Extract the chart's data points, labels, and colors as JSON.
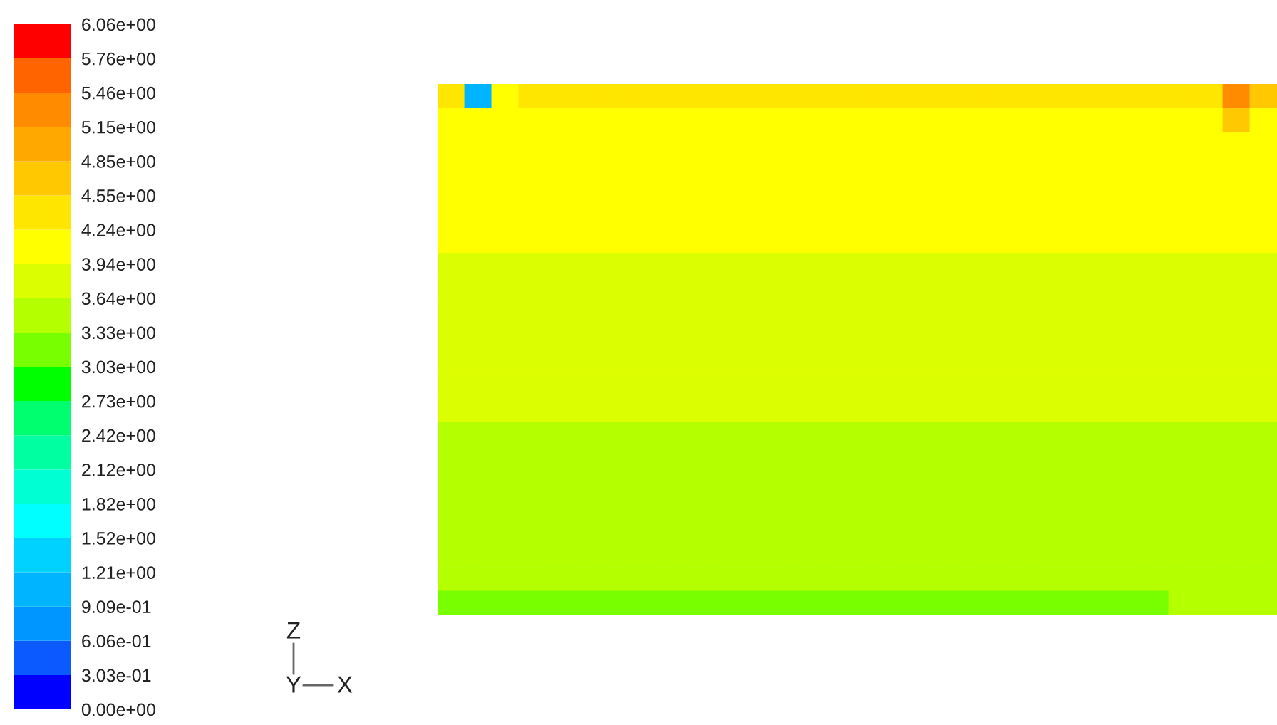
{
  "chart_data": {
    "type": "heatmap",
    "categories": [
      null,
      null,
      null,
      null,
      null,
      null,
      null,
      null,
      null,
      null,
      null,
      null,
      null,
      null,
      null,
      null,
      null,
      null,
      null,
      null,
      null,
      null,
      null,
      null,
      null,
      null,
      null,
      null,
      null,
      null,
      null
    ],
    "y_categories": [
      null,
      null,
      null,
      null,
      null,
      null,
      null,
      null,
      null,
      null,
      null,
      null,
      null,
      null,
      null,
      null,
      null,
      null,
      null,
      null,
      null,
      null
    ],
    "cells": [
      [
        4.4,
        1.06,
        4.09,
        4.4,
        4.4,
        4.4,
        4.4,
        4.4,
        4.4,
        4.4,
        4.4,
        4.4,
        4.4,
        4.4,
        4.4,
        4.4,
        4.4,
        4.4,
        4.4,
        4.4,
        4.4,
        4.4,
        4.4,
        4.4,
        4.4,
        4.4,
        4.4,
        4.4,
        4.4,
        5.3,
        4.7
      ],
      [
        4.09,
        4.09,
        4.09,
        4.09,
        4.09,
        4.09,
        4.09,
        4.09,
        4.09,
        4.09,
        4.09,
        4.09,
        4.09,
        4.09,
        4.09,
        4.09,
        4.09,
        4.09,
        4.09,
        4.09,
        4.09,
        4.09,
        4.09,
        4.09,
        4.09,
        4.09,
        4.09,
        4.09,
        4.09,
        4.7,
        4.09
      ],
      [
        4.09,
        4.09,
        4.09,
        4.09,
        4.09,
        4.09,
        4.09,
        4.09,
        4.09,
        4.09,
        4.09,
        4.09,
        4.09,
        4.09,
        4.09,
        4.09,
        4.09,
        4.09,
        4.09,
        4.09,
        4.09,
        4.09,
        4.09,
        4.09,
        4.09,
        4.09,
        4.09,
        4.09,
        4.09,
        4.09,
        4.09
      ],
      [
        4.09,
        4.09,
        4.09,
        4.09,
        4.09,
        4.09,
        4.09,
        4.09,
        4.09,
        4.09,
        4.09,
        4.09,
        4.09,
        4.09,
        4.09,
        4.09,
        4.09,
        4.09,
        4.09,
        4.09,
        4.09,
        4.09,
        4.09,
        4.09,
        4.09,
        4.09,
        4.09,
        4.09,
        4.09,
        4.09,
        4.09
      ],
      [
        4.09,
        4.09,
        4.09,
        4.09,
        4.09,
        4.09,
        4.09,
        4.09,
        4.09,
        4.09,
        4.09,
        4.09,
        4.09,
        4.09,
        4.09,
        4.09,
        4.09,
        4.09,
        4.09,
        4.09,
        4.09,
        4.09,
        4.09,
        4.09,
        4.09,
        4.09,
        4.09,
        4.09,
        4.09,
        4.09,
        4.09
      ],
      [
        4.09,
        4.09,
        4.09,
        4.09,
        4.09,
        4.09,
        4.09,
        4.09,
        4.09,
        4.09,
        4.09,
        4.09,
        4.09,
        4.09,
        4.09,
        4.09,
        4.09,
        4.09,
        4.09,
        4.09,
        4.09,
        4.09,
        4.09,
        4.09,
        4.09,
        4.09,
        4.09,
        4.09,
        4.09,
        4.09,
        4.09
      ],
      [
        4.09,
        4.09,
        4.09,
        4.09,
        4.09,
        4.09,
        4.09,
        4.09,
        4.09,
        4.09,
        4.09,
        4.09,
        4.09,
        4.09,
        4.09,
        4.09,
        4.09,
        4.09,
        4.09,
        4.09,
        4.09,
        4.09,
        4.09,
        4.09,
        4.09,
        4.09,
        4.09,
        4.09,
        4.09,
        4.09,
        4.09
      ],
      [
        3.79,
        3.79,
        3.79,
        3.79,
        3.79,
        3.79,
        3.79,
        3.79,
        3.79,
        3.79,
        3.79,
        3.79,
        3.79,
        3.79,
        3.79,
        3.79,
        3.79,
        3.79,
        3.79,
        3.79,
        3.79,
        3.79,
        3.79,
        3.79,
        3.79,
        3.79,
        3.79,
        3.79,
        3.79,
        3.79,
        3.79
      ],
      [
        3.79,
        3.79,
        3.79,
        3.79,
        3.79,
        3.79,
        3.79,
        3.79,
        3.79,
        3.79,
        3.79,
        3.79,
        3.79,
        3.79,
        3.79,
        3.79,
        3.79,
        3.79,
        3.79,
        3.79,
        3.79,
        3.79,
        3.79,
        3.79,
        3.79,
        3.79,
        3.79,
        3.79,
        3.79,
        3.79,
        3.79
      ],
      [
        3.79,
        3.79,
        3.79,
        3.79,
        3.79,
        3.79,
        3.79,
        3.79,
        3.79,
        3.79,
        3.79,
        3.79,
        3.79,
        3.79,
        3.79,
        3.79,
        3.79,
        3.79,
        3.79,
        3.79,
        3.79,
        3.79,
        3.79,
        3.79,
        3.79,
        3.79,
        3.79,
        3.79,
        3.79,
        3.79,
        3.79
      ],
      [
        3.79,
        3.79,
        3.79,
        3.79,
        3.79,
        3.79,
        3.79,
        3.79,
        3.79,
        3.79,
        3.79,
        3.79,
        3.79,
        3.79,
        3.79,
        3.79,
        3.79,
        3.79,
        3.79,
        3.79,
        3.79,
        3.79,
        3.79,
        3.79,
        3.79,
        3.79,
        3.79,
        3.79,
        3.79,
        3.79,
        3.79
      ],
      [
        3.79,
        3.79,
        3.79,
        3.79,
        3.79,
        3.79,
        3.79,
        3.79,
        3.79,
        3.79,
        3.79,
        3.79,
        3.79,
        3.79,
        3.79,
        3.79,
        3.79,
        3.79,
        3.79,
        3.79,
        3.79,
        3.79,
        3.79,
        3.79,
        3.79,
        3.79,
        3.79,
        3.79,
        3.79,
        3.79,
        3.79
      ],
      [
        3.79,
        3.79,
        3.79,
        3.79,
        3.79,
        3.79,
        3.79,
        3.79,
        3.79,
        3.79,
        3.79,
        3.79,
        3.79,
        3.79,
        3.79,
        3.79,
        3.79,
        3.79,
        3.79,
        3.79,
        3.79,
        3.79,
        3.79,
        3.79,
        3.79,
        3.79,
        3.79,
        3.79,
        3.79,
        3.79,
        3.79
      ],
      [
        3.79,
        3.79,
        3.79,
        3.79,
        3.79,
        3.79,
        3.79,
        3.79,
        3.79,
        3.79,
        3.79,
        3.79,
        3.79,
        3.79,
        3.79,
        3.79,
        3.79,
        3.79,
        3.79,
        3.79,
        3.79,
        3.79,
        3.79,
        3.79,
        3.79,
        3.79,
        3.79,
        3.79,
        3.79,
        3.79,
        3.79
      ],
      [
        3.48,
        3.48,
        3.48,
        3.48,
        3.48,
        3.48,
        3.48,
        3.48,
        3.48,
        3.48,
        3.48,
        3.48,
        3.48,
        3.48,
        3.48,
        3.48,
        3.48,
        3.48,
        3.48,
        3.48,
        3.48,
        3.48,
        3.48,
        3.48,
        3.48,
        3.48,
        3.48,
        3.48,
        3.48,
        3.48,
        3.48
      ],
      [
        3.48,
        3.48,
        3.48,
        3.48,
        3.48,
        3.48,
        3.48,
        3.48,
        3.48,
        3.48,
        3.48,
        3.48,
        3.48,
        3.48,
        3.48,
        3.48,
        3.48,
        3.48,
        3.48,
        3.48,
        3.48,
        3.48,
        3.48,
        3.48,
        3.48,
        3.48,
        3.48,
        3.48,
        3.48,
        3.48,
        3.48
      ],
      [
        3.48,
        3.48,
        3.48,
        3.48,
        3.48,
        3.48,
        3.48,
        3.48,
        3.48,
        3.48,
        3.48,
        3.48,
        3.48,
        3.48,
        3.48,
        3.48,
        3.48,
        3.48,
        3.48,
        3.48,
        3.48,
        3.48,
        3.48,
        3.48,
        3.48,
        3.48,
        3.48,
        3.48,
        3.48,
        3.48,
        3.48
      ],
      [
        3.48,
        3.48,
        3.48,
        3.48,
        3.48,
        3.48,
        3.48,
        3.48,
        3.48,
        3.48,
        3.48,
        3.48,
        3.48,
        3.48,
        3.48,
        3.48,
        3.48,
        3.48,
        3.48,
        3.48,
        3.48,
        3.48,
        3.48,
        3.48,
        3.48,
        3.48,
        3.48,
        3.48,
        3.48,
        3.48,
        3.48
      ],
      [
        3.48,
        3.48,
        3.48,
        3.48,
        3.48,
        3.48,
        3.48,
        3.48,
        3.48,
        3.48,
        3.48,
        3.48,
        3.48,
        3.48,
        3.48,
        3.48,
        3.48,
        3.48,
        3.48,
        3.48,
        3.48,
        3.48,
        3.48,
        3.48,
        3.48,
        3.48,
        3.48,
        3.48,
        3.48,
        3.48,
        3.48
      ],
      [
        3.48,
        3.48,
        3.48,
        3.48,
        3.48,
        3.48,
        3.48,
        3.48,
        3.48,
        3.48,
        3.48,
        3.48,
        3.48,
        3.48,
        3.48,
        3.48,
        3.48,
        3.48,
        3.48,
        3.48,
        3.48,
        3.48,
        3.48,
        3.48,
        3.48,
        3.48,
        3.48,
        3.48,
        3.48,
        3.48,
        3.48
      ],
      [
        3.48,
        3.48,
        3.48,
        3.48,
        3.48,
        3.48,
        3.48,
        3.48,
        3.48,
        3.48,
        3.48,
        3.48,
        3.48,
        3.48,
        3.48,
        3.48,
        3.48,
        3.48,
        3.48,
        3.48,
        3.48,
        3.48,
        3.48,
        3.48,
        3.48,
        3.48,
        3.48,
        3.48,
        3.48,
        3.48,
        3.48
      ],
      [
        3.18,
        3.18,
        3.18,
        3.18,
        3.18,
        3.18,
        3.18,
        3.18,
        3.18,
        3.18,
        3.18,
        3.18,
        3.18,
        3.18,
        3.18,
        3.18,
        3.18,
        3.18,
        3.18,
        3.18,
        3.18,
        3.18,
        3.18,
        3.18,
        3.18,
        3.18,
        3.18,
        3.48,
        3.48,
        3.48,
        3.48
      ]
    ],
    "colors": [
      "#0000ff",
      "#0a5aff",
      "#0096ff",
      "#00b4ff",
      "#00d2ff",
      "#00ffff",
      "#00ffd2",
      "#00ffa0",
      "#00ff6e",
      "#00ff00",
      "#78ff00",
      "#b4ff00",
      "#dcff00",
      "#ffff00",
      "#ffe600",
      "#ffc800",
      "#ffa800",
      "#ff8c00",
      "#ff6400",
      "#ff0000"
    ],
    "clim": [
      0,
      6.06
    ],
    "cticks": [
      {
        "value": 0,
        "label": "0.00e+00"
      },
      {
        "value": 0.303,
        "label": "3.03e-01"
      },
      {
        "value": 0.606,
        "label": "6.06e-01"
      },
      {
        "value": 0.909,
        "label": "9.09e-01"
      },
      {
        "value": 1.21,
        "label": "1.21e+00"
      },
      {
        "value": 1.52,
        "label": "1.52e+00"
      },
      {
        "value": 1.82,
        "label": "1.82e+00"
      },
      {
        "value": 2.12,
        "label": "2.12e+00"
      },
      {
        "value": 2.42,
        "label": "2.42e+00"
      },
      {
        "value": 2.73,
        "label": "2.73e+00"
      },
      {
        "value": 3.03,
        "label": "3.03e+00"
      },
      {
        "value": 3.33,
        "label": "3.33e+00"
      },
      {
        "value": 3.64,
        "label": "3.64e+00"
      },
      {
        "value": 3.94,
        "label": "3.94e+00"
      },
      {
        "value": 4.24,
        "label": "4.24e+00"
      },
      {
        "value": 4.55,
        "label": "4.55e+00"
      },
      {
        "value": 4.85,
        "label": "4.85e+00"
      },
      {
        "value": 5.15,
        "label": "5.15e+00"
      },
      {
        "value": 5.46,
        "label": "5.46e+00"
      },
      {
        "value": 5.76,
        "label": "5.76e+00"
      },
      {
        "value": 6.06,
        "label": "6.06e+00"
      }
    ],
    "annotations": [
      "Z",
      "Y",
      "X"
    ],
    "tick_labels": false
  }
}
